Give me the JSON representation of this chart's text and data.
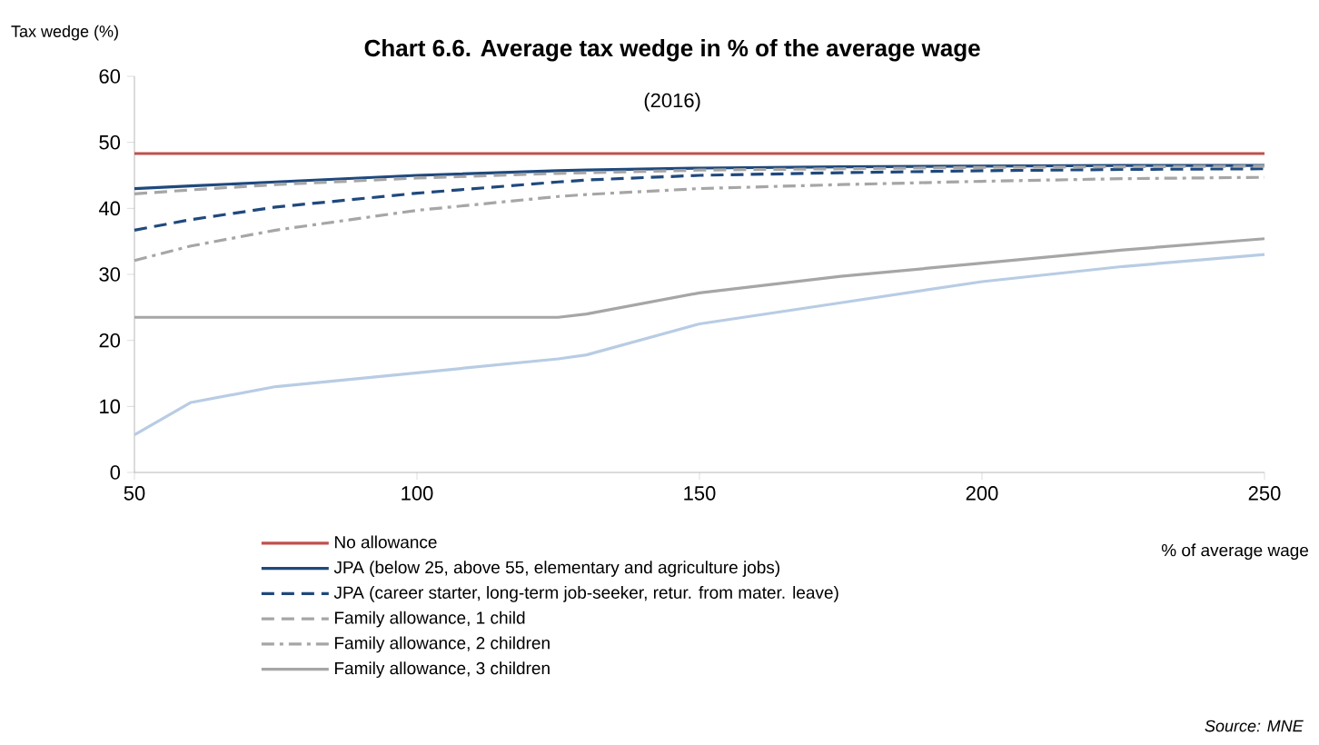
{
  "chart_data": {
    "type": "line",
    "title": "Chart 6.6. Average tax wedge in % of the average wage",
    "subtitle": "(2016)",
    "xlabel": "% of average wage",
    "ylabel": "Tax wedge (%)",
    "x": [
      50,
      60,
      75,
      100,
      125,
      130,
      150,
      175,
      200,
      225,
      250
    ],
    "series": [
      {
        "name": "No allowance",
        "color": "#c0504d",
        "line_style": "solid",
        "values": [
          48.3,
          48.3,
          48.3,
          48.3,
          48.3,
          48.3,
          48.3,
          48.3,
          48.3,
          48.3,
          48.3
        ]
      },
      {
        "name": "JPA (below 25, above 55, elementary and agriculture jobs)",
        "color": "#1f497d",
        "line_style": "solid",
        "values": [
          43,
          43.4,
          44,
          45,
          45.7,
          45.8,
          46.1,
          46.3,
          46.4,
          46.5,
          46.5
        ]
      },
      {
        "name": "JPA (career starter, long-term job-seeker, retur. from mater. leave)",
        "color": "#1f497d",
        "line_style": "dashed",
        "values": [
          36.7,
          38.3,
          40.2,
          42.3,
          44,
          44.3,
          45,
          45.4,
          45.7,
          45.9,
          46
        ]
      },
      {
        "name": "Family allowance, 1 child",
        "color": "#a6a6a6",
        "line_style": "dashed",
        "values": [
          42.2,
          42.8,
          43.6,
          44.6,
          45.3,
          45.4,
          45.8,
          46,
          46.2,
          46.3,
          46.4
        ]
      },
      {
        "name": "Family allowance, 2 children",
        "color": "#a6a6a6",
        "line_style": "dashdot",
        "values": [
          32.1,
          34.3,
          36.7,
          39.7,
          41.8,
          42.1,
          43,
          43.6,
          44.1,
          44.5,
          44.7
        ]
      },
      {
        "name": "Family allowance, 3 children",
        "color": "#a6a6a6",
        "line_style": "solid",
        "values": [
          23.5,
          23.5,
          23.5,
          23.5,
          23.5,
          24,
          27.2,
          29.7,
          31.7,
          33.7,
          35.4
        ]
      },
      {
        "color": "#b8cce4",
        "line_style": "solid",
        "values": [
          5.7,
          10.6,
          13,
          15.1,
          17.2,
          17.8,
          22.5,
          25.7,
          28.9,
          31.2,
          33
        ]
      }
    ],
    "xlim": [
      50,
      250
    ],
    "xticks": [
      50,
      100,
      150,
      200,
      250
    ],
    "ylim": [
      0,
      60
    ],
    "yticks": [
      0,
      10,
      20,
      30,
      40,
      50,
      60
    ],
    "legend": "bottom",
    "grid": false,
    "marker": "none",
    "annotations": [
      "Source: MNE"
    ]
  }
}
